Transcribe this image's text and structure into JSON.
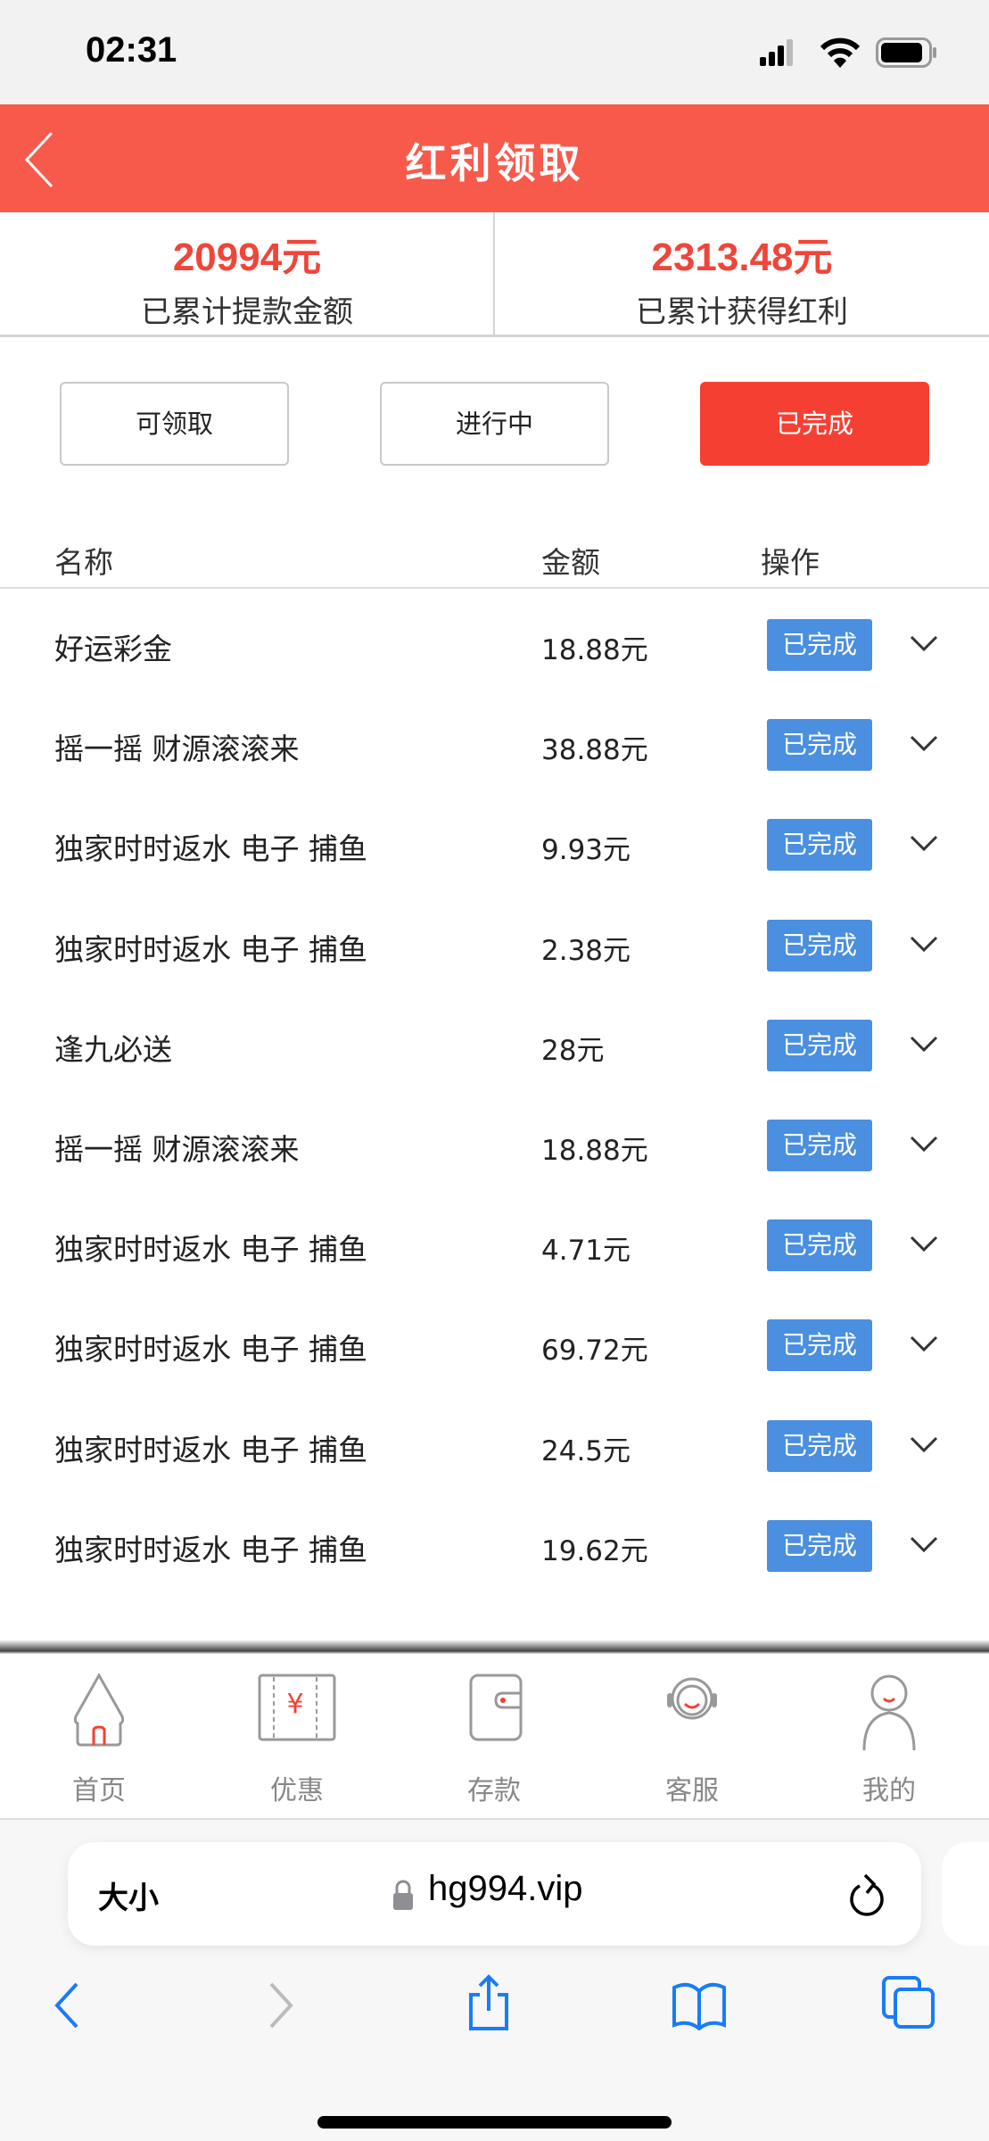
{
  "status_bar": {
    "time": "02:31"
  },
  "header": {
    "title": "红利领取"
  },
  "stats": [
    {
      "value": "20994元",
      "label": "已累计提款金额"
    },
    {
      "value": "2313.48元",
      "label": "已累计获得红利"
    }
  ],
  "tabs": [
    {
      "label": "可领取",
      "active": false
    },
    {
      "label": "进行中",
      "active": false
    },
    {
      "label": "已完成",
      "active": true
    }
  ],
  "columns": {
    "name": "名称",
    "amount": "金额",
    "action": "操作"
  },
  "rows": [
    {
      "name": "好运彩金",
      "amount": "18.88元",
      "status": "已完成"
    },
    {
      "name": "摇一摇 财源滚滚来",
      "amount": "38.88元",
      "status": "已完成"
    },
    {
      "name": "独家时时返水 电子 捕鱼",
      "amount": "9.93元",
      "status": "已完成"
    },
    {
      "name": "独家时时返水 电子 捕鱼",
      "amount": "2.38元",
      "status": "已完成"
    },
    {
      "name": "逢九必送",
      "amount": "28元",
      "status": "已完成"
    },
    {
      "name": "摇一摇 财源滚滚来",
      "amount": "18.88元",
      "status": "已完成"
    },
    {
      "name": "独家时时返水 电子 捕鱼",
      "amount": "4.71元",
      "status": "已完成"
    },
    {
      "name": "独家时时返水 电子 捕鱼",
      "amount": "69.72元",
      "status": "已完成"
    },
    {
      "name": "独家时时返水 电子 捕鱼",
      "amount": "24.5元",
      "status": "已完成"
    },
    {
      "name": "独家时时返水 电子 捕鱼",
      "amount": "19.62元",
      "status": "已完成"
    }
  ],
  "bottom_nav": [
    {
      "label": "首页",
      "icon": "home-icon"
    },
    {
      "label": "优惠",
      "icon": "coupon-icon"
    },
    {
      "label": "存款",
      "icon": "wallet-icon"
    },
    {
      "label": "客服",
      "icon": "headset-icon"
    },
    {
      "label": "我的",
      "icon": "user-icon"
    }
  ],
  "browser": {
    "text_size": "大小",
    "url": "hg994.vip"
  },
  "colors": {
    "header": "#f75a4b",
    "accent": "#f53f33",
    "badge": "#4a8fe0",
    "safari_blue": "#1a7cf5"
  }
}
